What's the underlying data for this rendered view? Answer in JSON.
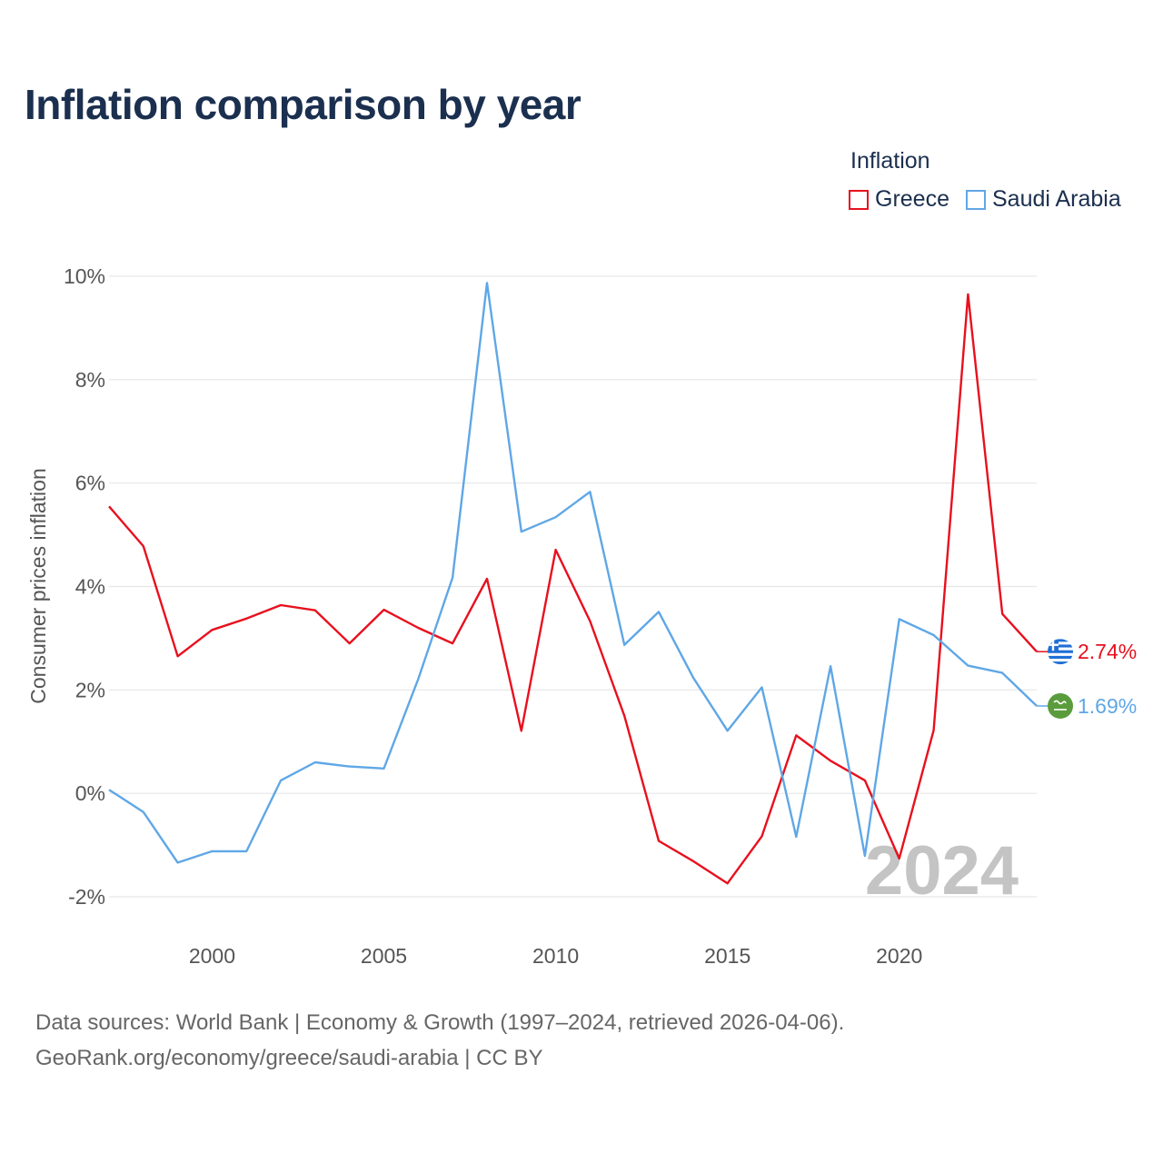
{
  "title": "Inflation comparison by year",
  "legend": {
    "title": "Inflation",
    "items": [
      {
        "label": "Greece",
        "color": "#e8101e"
      },
      {
        "label": "Saudi Arabia",
        "color": "#5fa7e6"
      }
    ]
  },
  "footer": {
    "line1": "Data sources: World Bank | Economy & Growth (1997–2024, retrieved 2026-04-06).",
    "line2": "GeoRank.org/economy/greece/saudi-arabia | CC BY"
  },
  "chart_data": {
    "type": "line",
    "title": "Inflation comparison by year",
    "xlabel": "",
    "ylabel": "Consumer prices inflation",
    "xlim": [
      1997,
      2024
    ],
    "ylim": [
      -2,
      10
    ],
    "yticks": [
      -2,
      0,
      2,
      4,
      6,
      8,
      10
    ],
    "ytick_labels": [
      "-2%",
      "0%",
      "2%",
      "4%",
      "6%",
      "8%",
      "10%"
    ],
    "xticks": [
      2000,
      2005,
      2010,
      2015,
      2020
    ],
    "xtick_labels": [
      "2000",
      "2005",
      "2010",
      "2015",
      "2020"
    ],
    "grid": true,
    "year_overlay": "2024",
    "x": [
      1997,
      1998,
      1999,
      2000,
      2001,
      2002,
      2003,
      2004,
      2005,
      2006,
      2007,
      2008,
      2009,
      2010,
      2011,
      2012,
      2013,
      2014,
      2015,
      2016,
      2017,
      2018,
      2019,
      2020,
      2021,
      2022,
      2023,
      2024
    ],
    "series": [
      {
        "name": "Greece",
        "color": "#e8101e",
        "end_label": "2.74%",
        "flag_icon": "greece-flag-icon",
        "values": [
          5.55,
          4.78,
          2.65,
          3.16,
          3.38,
          3.64,
          3.54,
          2.9,
          3.55,
          3.2,
          2.9,
          4.15,
          1.21,
          4.71,
          3.33,
          1.5,
          -0.92,
          -1.31,
          -1.74,
          -0.83,
          1.12,
          0.63,
          0.25,
          -1.26,
          1.22,
          9.65,
          3.47,
          2.74
        ]
      },
      {
        "name": "Saudi Arabia",
        "color": "#5fa7e6",
        "end_label": "1.69%",
        "flag_icon": "saudi-arabia-flag-icon",
        "values": [
          0.07,
          -0.36,
          -1.34,
          -1.12,
          -1.12,
          0.25,
          0.6,
          0.52,
          0.48,
          2.21,
          4.17,
          9.87,
          5.06,
          5.34,
          5.83,
          2.87,
          3.51,
          2.24,
          1.21,
          2.05,
          -0.84,
          2.46,
          -1.21,
          3.37,
          3.06,
          2.47,
          2.33,
          1.69
        ]
      }
    ]
  }
}
